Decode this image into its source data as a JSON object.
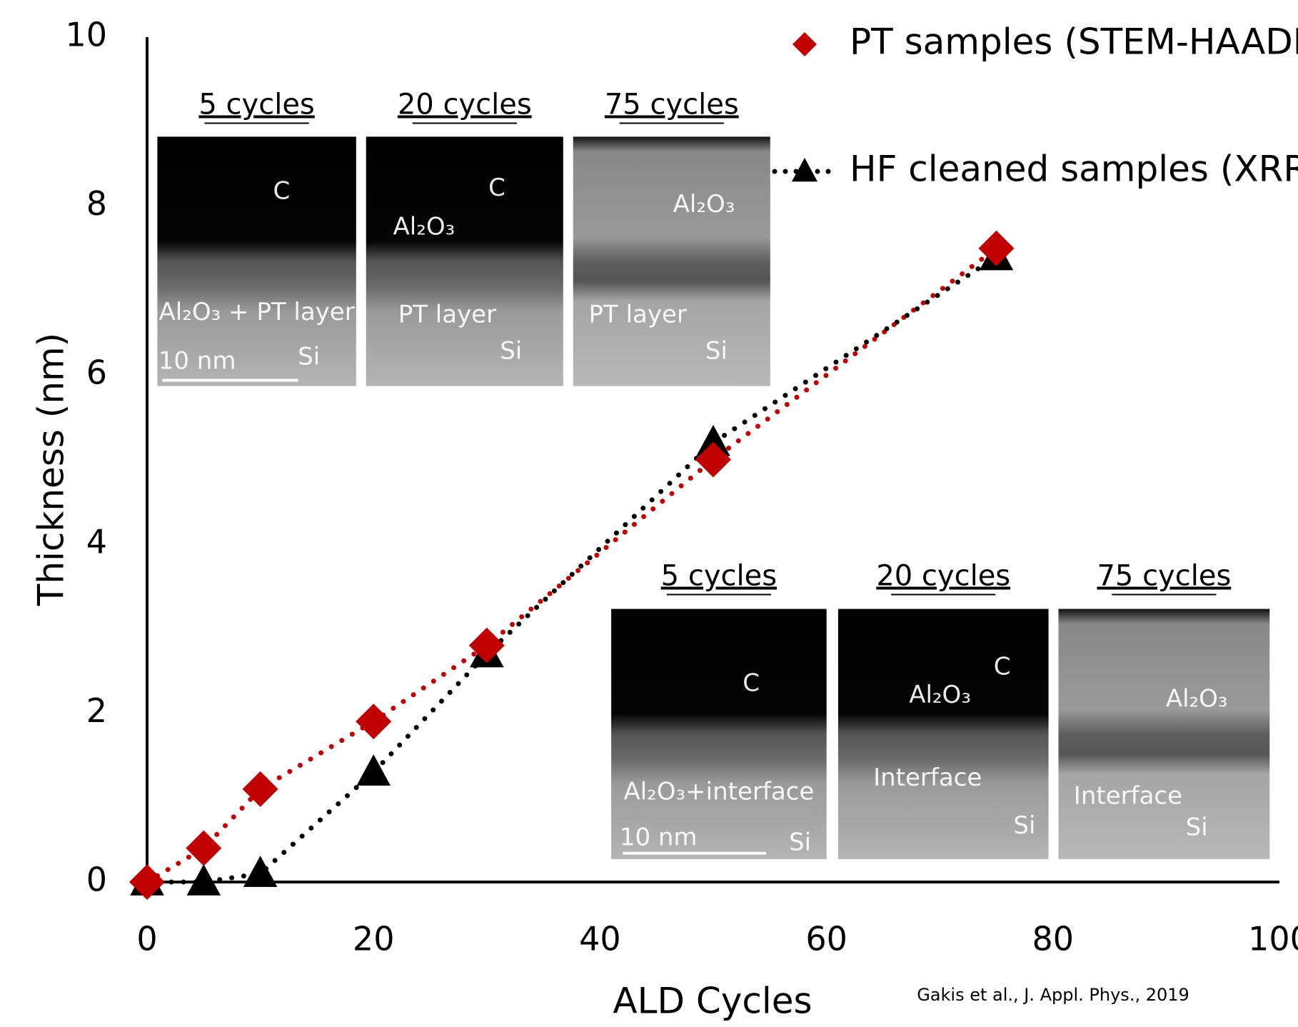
{
  "chart_data": {
    "type": "line",
    "x_label": "ALD Cycles",
    "y_label": "Thickness (nm)",
    "x": [
      0,
      5,
      10,
      20,
      30,
      50,
      75
    ],
    "series": [
      {
        "name": "PT samples (STEM-HAADF)",
        "color": "#c00000",
        "marker": "diamond",
        "values": [
          0,
          0.4,
          1.1,
          1.9,
          2.8,
          5.0,
          7.5
        ]
      },
      {
        "name": "HF cleaned samples (XRR)",
        "color": "#000000",
        "marker": "triangle",
        "values": [
          0,
          0,
          0.1,
          1.3,
          2.7,
          5.2,
          7.4
        ]
      }
    ],
    "xlim": [
      0,
      100
    ],
    "xticks": [
      0,
      20,
      40,
      60,
      80,
      100
    ],
    "ylim": [
      0,
      10
    ],
    "yticks": [
      0,
      2,
      4,
      6,
      8,
      10
    ],
    "grid": false,
    "legend": "top-right",
    "insets": [
      {
        "panels": [
          {
            "title": "5 cycles",
            "labels": [
              "C",
              "Al₂O₃ + PT layer",
              "10  nm",
              "Si"
            ]
          },
          {
            "title": "20 cycles",
            "labels": [
              "C",
              "Al₂O₃",
              "PT layer",
              "Si"
            ]
          },
          {
            "title": "75 cycles",
            "labels": [
              "Al₂O₃",
              "PT layer",
              "Si"
            ]
          }
        ]
      },
      {
        "panels": [
          {
            "title": "5 cycles",
            "labels": [
              "C",
              "Al₂O₃+interface",
              "10  nm",
              "Si"
            ]
          },
          {
            "title": "20 cycles",
            "labels": [
              "C",
              "Al₂O₃",
              "Interface",
              "Si"
            ]
          },
          {
            "title": "75 cycles",
            "labels": [
              "Al₂O₃",
              "Interface",
              "Si"
            ]
          }
        ]
      }
    ],
    "citation": "Gakis et al., J. Appl. Phys., 2019"
  }
}
